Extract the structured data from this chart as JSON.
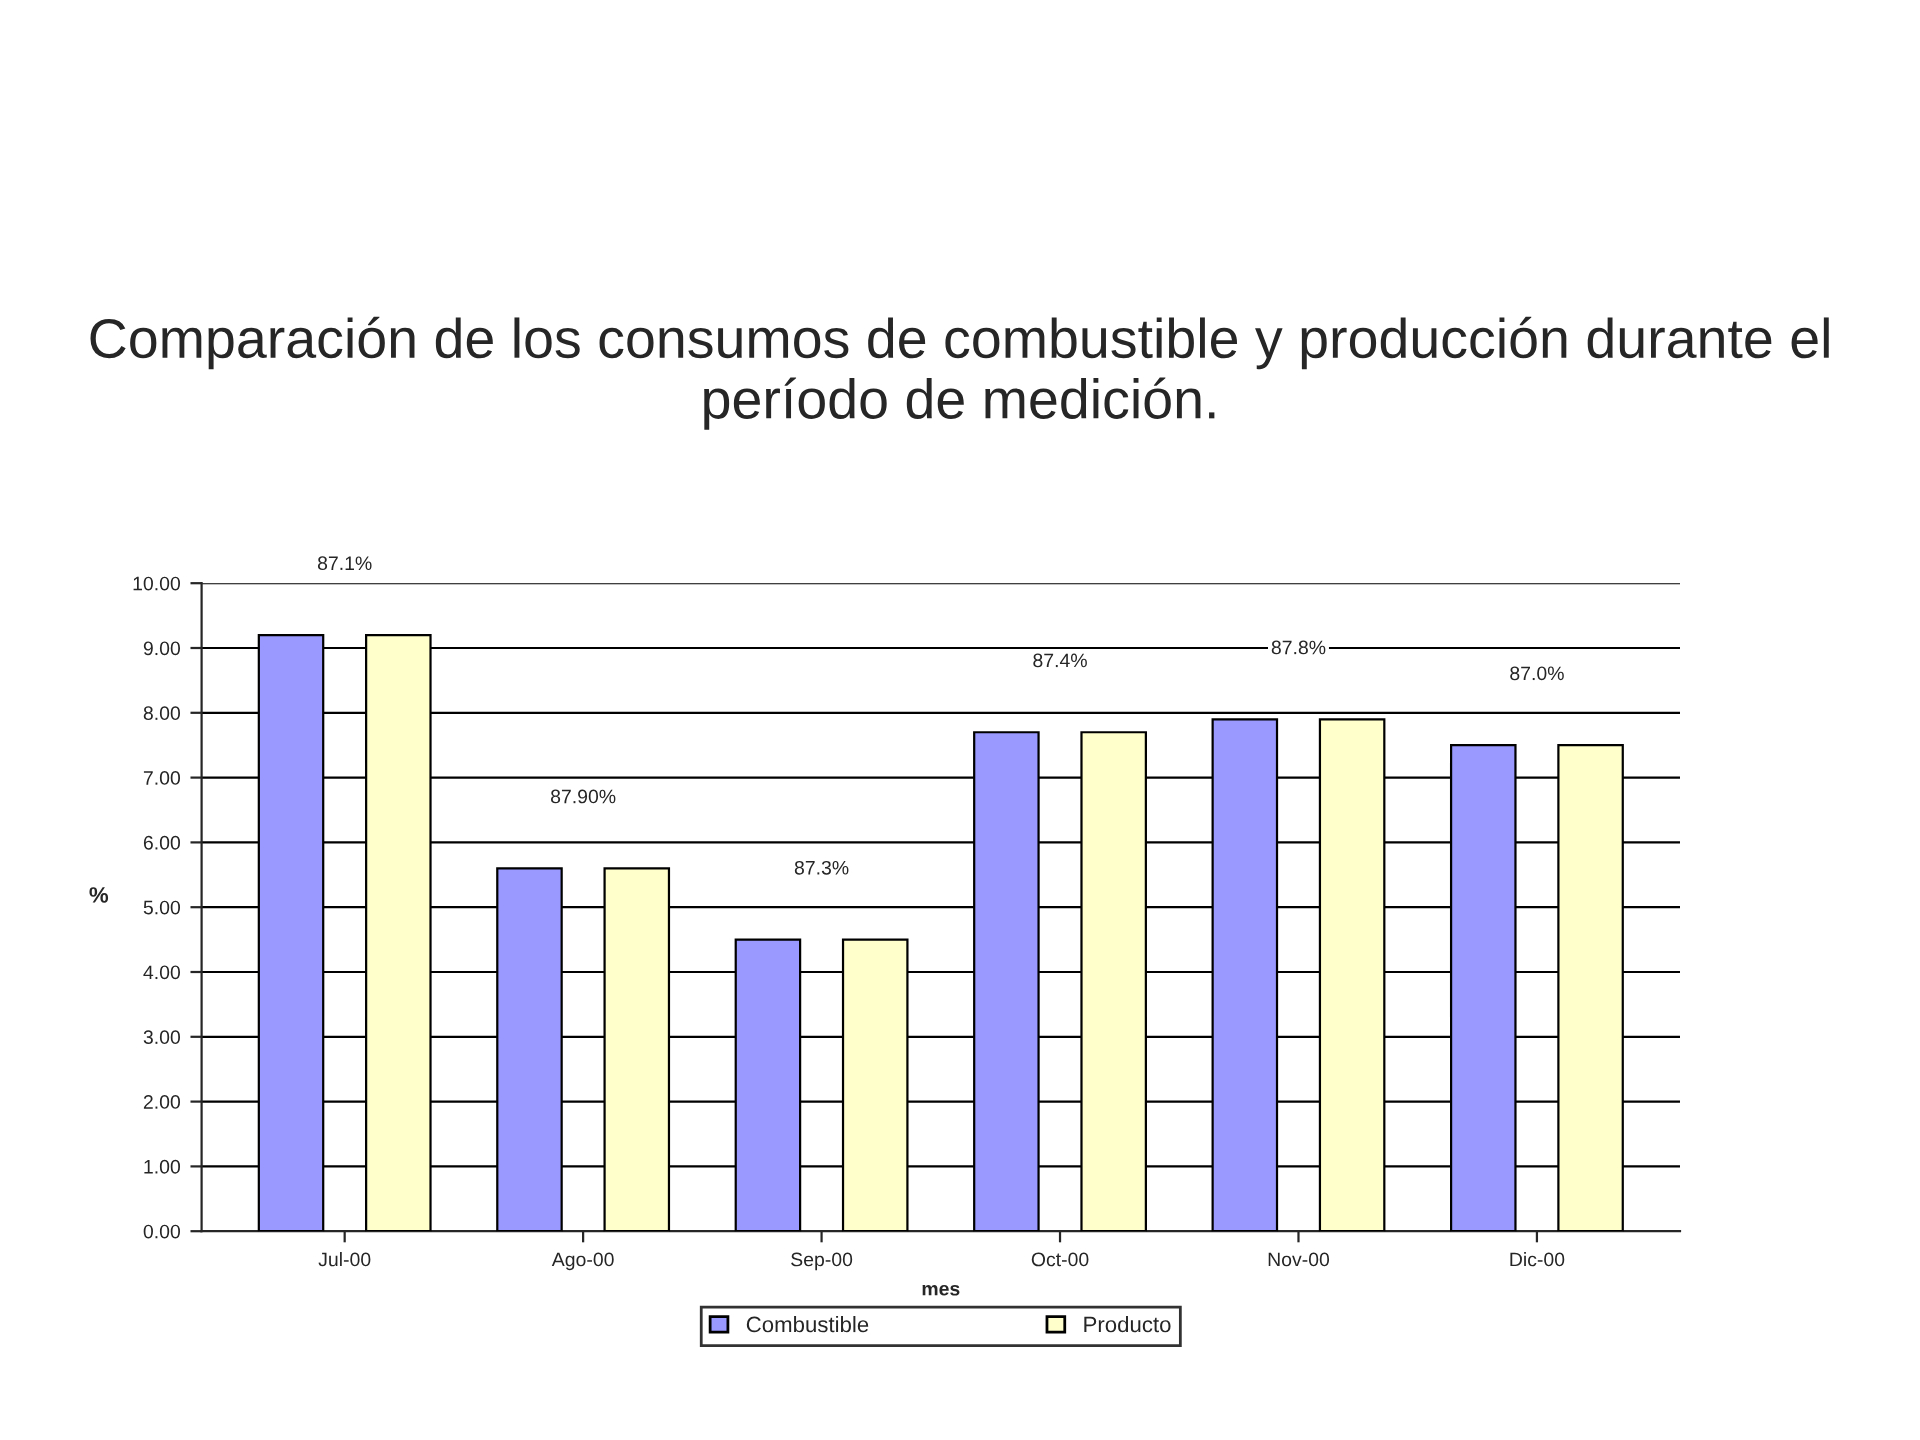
{
  "chart_data": {
    "type": "bar",
    "title": "Comparación de los consumos de combustible y producción durante el período de medición.",
    "xlabel": "mes",
    "ylabel": "%",
    "categories": [
      "Jul-00",
      "Ago-00",
      "Sep-00",
      "Oct-00",
      "Nov-00",
      "Dic-00"
    ],
    "series": [
      {
        "name": "Combustible",
        "color": "#9999ff",
        "values": [
          9.2,
          5.6,
          4.5,
          7.7,
          7.9,
          7.5
        ]
      },
      {
        "name": "Producto",
        "color": "#ffffcc",
        "values": [
          9.2,
          5.6,
          4.5,
          7.7,
          7.9,
          7.5
        ]
      }
    ],
    "annotations": [
      "87.1%",
      "87.90%",
      "87.3%",
      "87.4%",
      "87.8%",
      "87.0%"
    ],
    "ylim": [
      0,
      10
    ],
    "yticks": [
      {
        "value": 0,
        "label": "0.00"
      },
      {
        "value": 1,
        "label": "1.00"
      },
      {
        "value": 2,
        "label": "2.00"
      },
      {
        "value": 3,
        "label": "3.00"
      },
      {
        "value": 4,
        "label": "4.00"
      },
      {
        "value": 5,
        "label": "5.00"
      },
      {
        "value": 6,
        "label": "6.00"
      },
      {
        "value": 7,
        "label": "7.00"
      },
      {
        "value": 8,
        "label": "8.00"
      },
      {
        "value": 9,
        "label": "9.00"
      },
      {
        "value": 10,
        "label": "10.00"
      }
    ],
    "grid": "y",
    "legend": "bottom"
  }
}
